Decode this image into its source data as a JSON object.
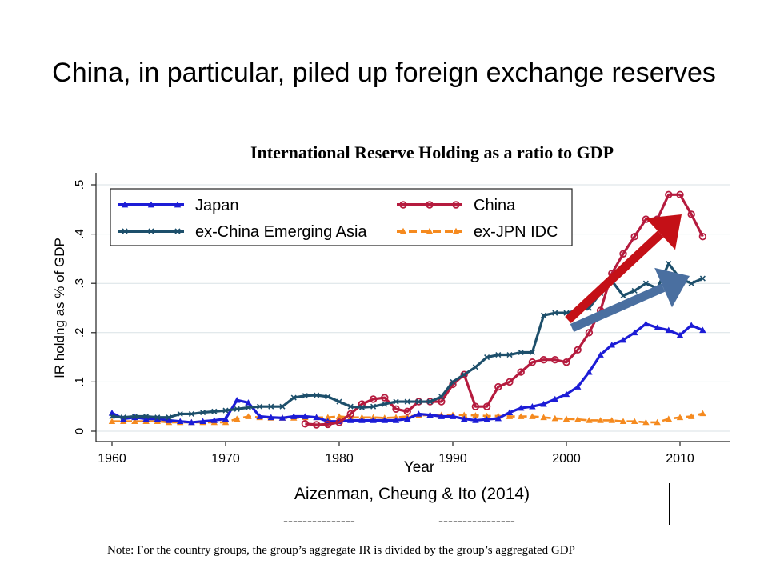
{
  "slide": {
    "title": "China, in particular, piled up foreign exchange reserves",
    "citation": "Aizenman, Cheung & Ito (2014)",
    "dash_left": "---------------",
    "dash_right": "----------------",
    "note": "Note: For the country groups, the group’s aggregate IR is divided by the group’s aggregated GDP"
  },
  "colors": {
    "japan": "#1c1cd6",
    "china": "#b51b3e",
    "ex_china_asia": "#1d4f6b",
    "ex_jpn_idc": "#f58a1f",
    "arrow_red": "#c41017",
    "arrow_blue": "#4a6fa0"
  },
  "chart_data": {
    "type": "line",
    "title": "International Reserve Holding as a ratio to GDP",
    "xlabel": "Year",
    "ylabel": "IR holdng as % of GDP",
    "xlim": [
      1960,
      2013
    ],
    "ylim": [
      0,
      0.5
    ],
    "xticks": [
      1960,
      1970,
      1980,
      1990,
      2000,
      2010
    ],
    "yticks": [
      0,
      0.1,
      0.2,
      0.3,
      0.4,
      0.5
    ],
    "ytick_labels": [
      "0",
      ".1",
      ".2",
      ".3",
      ".4",
      ".5"
    ],
    "grid": true,
    "legend_position": "top-left",
    "series": [
      {
        "name": "Japan",
        "color_key": "japan",
        "marker": "triangle",
        "x": [
          1960,
          1961,
          1962,
          1963,
          1964,
          1965,
          1966,
          1967,
          1968,
          1969,
          1970,
          1971,
          1972,
          1973,
          1974,
          1975,
          1976,
          1977,
          1978,
          1979,
          1980,
          1981,
          1982,
          1983,
          1984,
          1985,
          1986,
          1987,
          1988,
          1989,
          1990,
          1991,
          1992,
          1993,
          1994,
          1995,
          1996,
          1997,
          1998,
          1999,
          2000,
          2001,
          2002,
          2003,
          2004,
          2005,
          2006,
          2007,
          2008,
          2009,
          2010,
          2011,
          2012
        ],
        "y": [
          0.037,
          0.025,
          0.028,
          0.025,
          0.025,
          0.022,
          0.02,
          0.018,
          0.02,
          0.022,
          0.025,
          0.063,
          0.058,
          0.03,
          0.028,
          0.027,
          0.03,
          0.03,
          0.028,
          0.02,
          0.02,
          0.022,
          0.022,
          0.022,
          0.022,
          0.022,
          0.025,
          0.035,
          0.033,
          0.03,
          0.03,
          0.025,
          0.022,
          0.024,
          0.026,
          0.038,
          0.047,
          0.05,
          0.055,
          0.065,
          0.075,
          0.09,
          0.12,
          0.155,
          0.175,
          0.185,
          0.2,
          0.218,
          0.21,
          0.205,
          0.195,
          0.215,
          0.205
        ]
      },
      {
        "name": "China",
        "color_key": "china",
        "marker": "circle",
        "x": [
          1977,
          1978,
          1979,
          1980,
          1981,
          1982,
          1983,
          1984,
          1985,
          1986,
          1987,
          1988,
          1989,
          1990,
          1991,
          1992,
          1993,
          1994,
          1995,
          1996,
          1997,
          1998,
          1999,
          2000,
          2001,
          2002,
          2003,
          2004,
          2005,
          2006,
          2007,
          2008,
          2009,
          2010,
          2011,
          2012
        ],
        "y": [
          0.015,
          0.013,
          0.014,
          0.018,
          0.035,
          0.055,
          0.065,
          0.068,
          0.045,
          0.04,
          0.06,
          0.06,
          0.06,
          0.095,
          0.115,
          0.05,
          0.05,
          0.09,
          0.1,
          0.12,
          0.14,
          0.145,
          0.145,
          0.14,
          0.165,
          0.2,
          0.245,
          0.32,
          0.36,
          0.395,
          0.43,
          0.43,
          0.48,
          0.48,
          0.44,
          0.395
        ]
      },
      {
        "name": "ex-China Emerging Asia",
        "color_key": "ex_china_asia",
        "marker": "x",
        "x": [
          1960,
          1961,
          1962,
          1963,
          1964,
          1965,
          1966,
          1967,
          1968,
          1969,
          1970,
          1971,
          1972,
          1973,
          1974,
          1975,
          1976,
          1977,
          1978,
          1979,
          1980,
          1981,
          1982,
          1983,
          1984,
          1985,
          1986,
          1987,
          1988,
          1989,
          1990,
          1991,
          1992,
          1993,
          1994,
          1995,
          1996,
          1997,
          1998,
          1999,
          2000,
          2001,
          2002,
          2003,
          2004,
          2005,
          2006,
          2007,
          2008,
          2009,
          2010,
          2011,
          2012
        ],
        "y": [
          0.03,
          0.028,
          0.03,
          0.03,
          0.028,
          0.028,
          0.035,
          0.035,
          0.038,
          0.04,
          0.042,
          0.045,
          0.048,
          0.05,
          0.05,
          0.05,
          0.068,
          0.072,
          0.073,
          0.07,
          0.06,
          0.05,
          0.048,
          0.05,
          0.055,
          0.06,
          0.06,
          0.06,
          0.06,
          0.07,
          0.1,
          0.115,
          0.13,
          0.15,
          0.155,
          0.155,
          0.16,
          0.16,
          0.235,
          0.24,
          0.24,
          0.245,
          0.25,
          0.28,
          0.305,
          0.275,
          0.285,
          0.3,
          0.29,
          0.34,
          0.31,
          0.3,
          0.31
        ]
      },
      {
        "name": "ex-JPN IDC",
        "color_key": "ex_jpn_idc",
        "marker": "triangle",
        "x": [
          1960,
          1961,
          1962,
          1963,
          1964,
          1965,
          1966,
          1967,
          1968,
          1969,
          1970,
          1971,
          1972,
          1973,
          1974,
          1975,
          1976,
          1977,
          1978,
          1979,
          1980,
          1981,
          1982,
          1983,
          1984,
          1985,
          1986,
          1987,
          1988,
          1989,
          1990,
          1991,
          1992,
          1993,
          1994,
          1995,
          1996,
          1997,
          1998,
          1999,
          2000,
          2001,
          2002,
          2003,
          2004,
          2005,
          2006,
          2007,
          2008,
          2009,
          2010,
          2011,
          2012
        ],
        "y": [
          0.02,
          0.02,
          0.02,
          0.02,
          0.02,
          0.018,
          0.018,
          0.018,
          0.018,
          0.018,
          0.018,
          0.025,
          0.03,
          0.028,
          0.027,
          0.027,
          0.027,
          0.028,
          0.028,
          0.028,
          0.03,
          0.028,
          0.028,
          0.028,
          0.027,
          0.028,
          0.03,
          0.032,
          0.033,
          0.033,
          0.033,
          0.033,
          0.032,
          0.031,
          0.031,
          0.03,
          0.03,
          0.03,
          0.028,
          0.026,
          0.025,
          0.024,
          0.022,
          0.022,
          0.022,
          0.02,
          0.02,
          0.018,
          0.018,
          0.025,
          0.028,
          0.03,
          0.036
        ]
      }
    ]
  }
}
